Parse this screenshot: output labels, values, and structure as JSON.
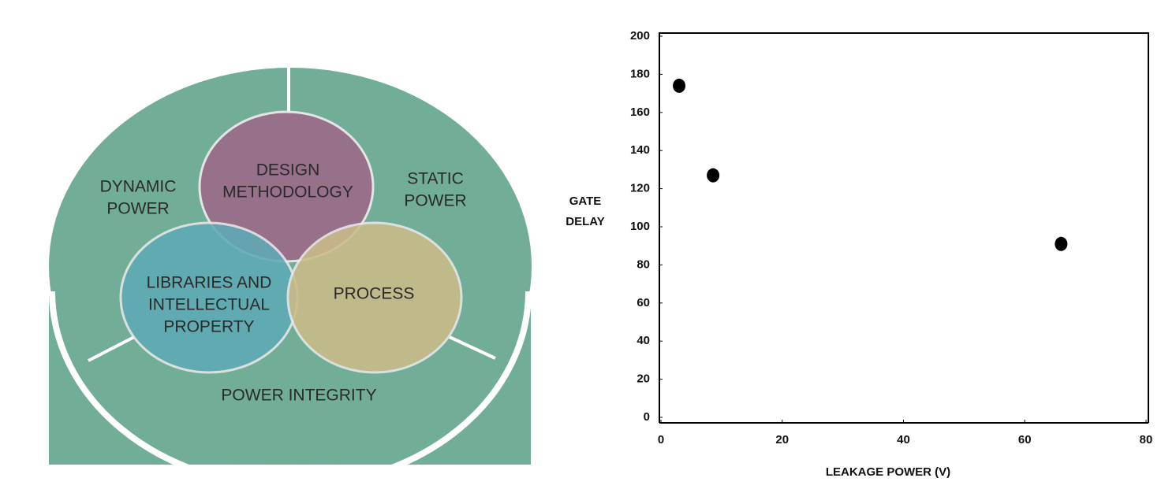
{
  "diagram": {
    "dynamic": [
      "DYNAMIC",
      "POWER"
    ],
    "static": [
      "STATIC",
      "POWER"
    ],
    "design": [
      "DESIGN",
      "METHODOLOGY"
    ],
    "libraries": [
      "LIBRARIES AND",
      "INTELLECTUAL",
      "PROPERTY"
    ],
    "process": [
      "PROCESS"
    ],
    "integrity": [
      "POWER INTEGRITY"
    ]
  },
  "chart_data": {
    "type": "scatter",
    "x_label": "LEAKAGE POWER (V)",
    "y_label": [
      "GATE",
      "DELAY"
    ],
    "x": [
      3,
      8.6,
      66
    ],
    "values": [
      174,
      127,
      91
    ],
    "color": "#000000",
    "xlim": [
      0,
      80
    ],
    "xticks": [
      0,
      20,
      40,
      60,
      80
    ],
    "ylim": [
      0,
      200
    ],
    "yticks": [
      0,
      20,
      40,
      60,
      80,
      100,
      120,
      140,
      160,
      180,
      200
    ]
  }
}
